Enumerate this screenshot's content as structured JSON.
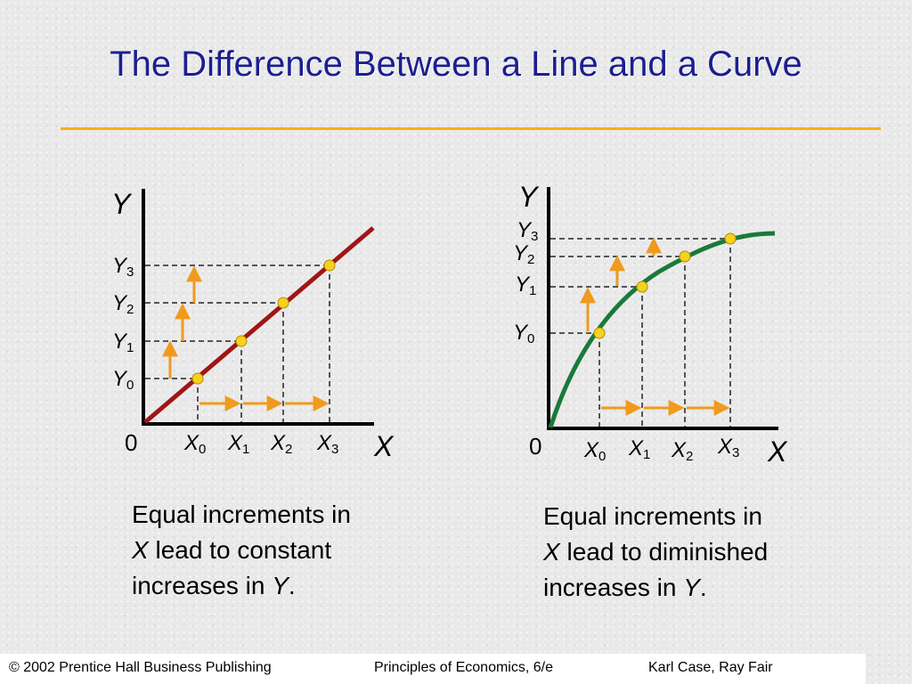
{
  "title": "The Difference Between a Line and a Curve",
  "colors": {
    "title": "#1b1f8f",
    "rule": "#f5b400",
    "line": "#a01515",
    "curve": "#1a7a3a",
    "point": "#f4d21f",
    "arrow": "#f09a1e",
    "guide": "#555555"
  },
  "left_graph": {
    "y_axis": "Y",
    "x_axis": "X",
    "origin": "0",
    "y_ticks": [
      {
        "base": "Y",
        "sub": "3"
      },
      {
        "base": "Y",
        "sub": "2"
      },
      {
        "base": "Y",
        "sub": "1"
      },
      {
        "base": "Y",
        "sub": "0"
      }
    ],
    "x_ticks": [
      {
        "base": "X",
        "sub": "0"
      },
      {
        "base": "X",
        "sub": "1"
      },
      {
        "base": "X",
        "sub": "2"
      },
      {
        "base": "X",
        "sub": "3"
      }
    ],
    "caption": {
      "line1": "Equal increments in",
      "line2_var": "X",
      "line2_rest": " lead to constant",
      "line3_pre": "increases in ",
      "line3_var": "Y",
      "line3_post": "."
    }
  },
  "right_graph": {
    "y_axis": "Y",
    "x_axis": "X",
    "origin": "0",
    "y_ticks": [
      {
        "base": "Y",
        "sub": "3"
      },
      {
        "base": "Y",
        "sub": "2"
      },
      {
        "base": "Y",
        "sub": "1"
      },
      {
        "base": "Y",
        "sub": "0"
      }
    ],
    "x_ticks": [
      {
        "base": "X",
        "sub": "0"
      },
      {
        "base": "X",
        "sub": "1"
      },
      {
        "base": "X",
        "sub": "2"
      },
      {
        "base": "X",
        "sub": "3"
      }
    ],
    "caption": {
      "line1": "Equal increments in",
      "line2_var": "X",
      "line2_rest": " lead to diminished",
      "line3_pre": "increases in ",
      "line3_var": "Y",
      "line3_post": "."
    }
  },
  "footer": {
    "copyright": "© 2002 Prentice Hall Business Publishing",
    "book": "Principles of Economics, 6/e",
    "authors": "Karl Case, Ray Fair"
  }
}
